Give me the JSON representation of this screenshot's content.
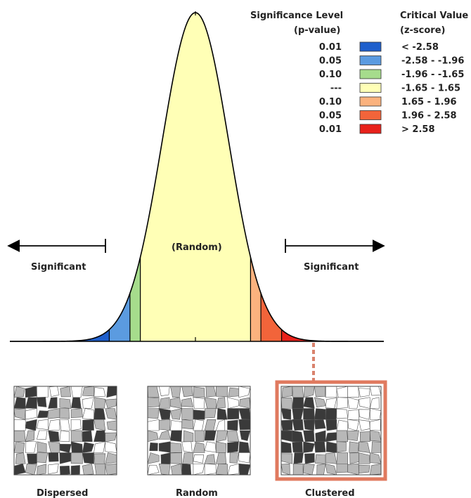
{
  "legend": {
    "sig_header_line1": "Significance Level",
    "sig_header_line2": "(p-value)",
    "crit_header_line1": "Critical Value",
    "crit_header_line2": "(z-score)",
    "rows": [
      {
        "p": "0.01",
        "color": "#1f5fcc",
        "z": "< -2.58"
      },
      {
        "p": "0.05",
        "color": "#5b9be0",
        "z": "-2.58 - -1.96"
      },
      {
        "p": "0.10",
        "color": "#a6dc8c",
        "z": "-1.96 - -1.65"
      },
      {
        "p": "---",
        "color": "#ffffb6",
        "z": "-1.65 - 1.65"
      },
      {
        "p": "0.10",
        "color": "#fbb27e",
        "z": "1.65 - 1.96"
      },
      {
        "p": "0.05",
        "color": "#f2643a",
        "z": "1.96 - 2.58"
      },
      {
        "p": "0.01",
        "color": "#e8221b",
        "z": "> 2.58"
      }
    ]
  },
  "curve": {
    "center_label": "(Random)",
    "left_label": "Significant",
    "right_label": "Significant",
    "z_breaks": [
      -2.58,
      -1.96,
      -1.65,
      1.65,
      1.96,
      2.58
    ]
  },
  "patterns": [
    {
      "label": "Dispersed",
      "highlighted": false
    },
    {
      "label": "Random",
      "highlighted": false
    },
    {
      "label": "Clustered",
      "highlighted": true
    }
  ],
  "colors": {
    "highlight_frame": "#e07a5f",
    "dark_polygon": "#3a3a3a",
    "mid_polygon": "#b8b8b8",
    "light_polygon": "#ffffff"
  }
}
